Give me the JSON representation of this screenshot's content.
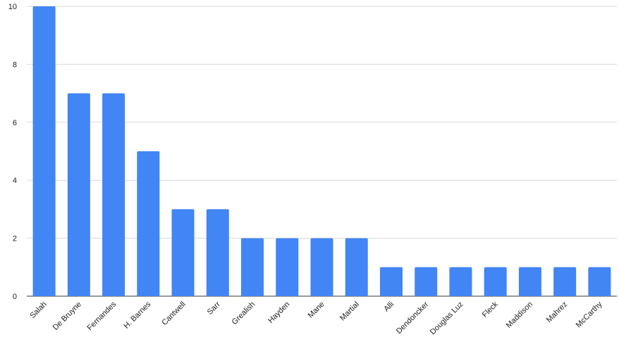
{
  "chart_data": {
    "type": "bar",
    "categories": [
      "Salah",
      "De Bruyne",
      "Fernandes",
      "H. Barnes",
      "Cantwell",
      "Sarr",
      "Grealish",
      "Hayden",
      "Mane",
      "Martial",
      "Alli",
      "Dendoncker",
      "Douglas Luz",
      "Fleck",
      "Maddison",
      "Mahrez",
      "McCarthy"
    ],
    "values": [
      10,
      7,
      7,
      5,
      3,
      3,
      2,
      2,
      2,
      2,
      1,
      1,
      1,
      1,
      1,
      1,
      1
    ],
    "color": "#4285f4",
    "ylim": [
      0,
      10
    ],
    "yticks": [
      0,
      2,
      4,
      6,
      8,
      10
    ],
    "grid": true
  }
}
